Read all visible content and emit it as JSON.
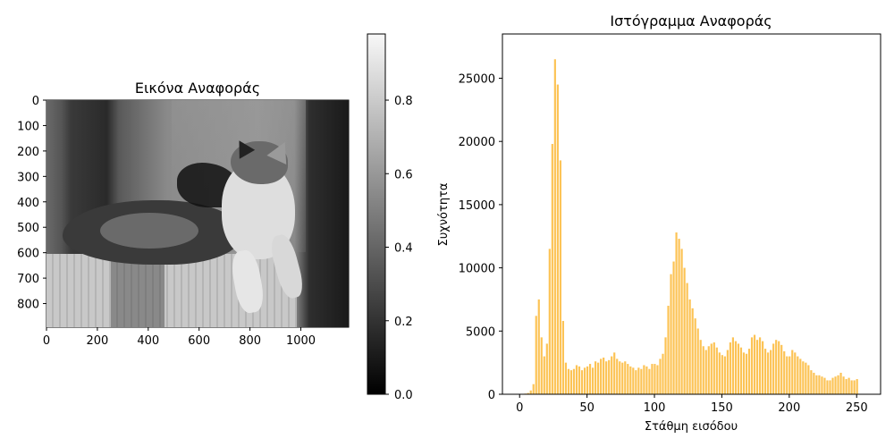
{
  "image_panel": {
    "title": "Εικόνα Αναφοράς",
    "x_ticks": [
      0,
      200,
      400,
      600,
      800,
      1000
    ],
    "y_ticks": [
      0,
      100,
      200,
      300,
      400,
      500,
      600,
      700,
      800
    ],
    "x_range": [
      0,
      1188
    ],
    "y_range": [
      0,
      893
    ],
    "colormap": "gray",
    "image_content": "grayscale photograph of a tabby-and-white cat lying on a sofa"
  },
  "colorbar": {
    "ticks": [
      0.0,
      0.2,
      0.4,
      0.6,
      0.8
    ],
    "tick_labels": [
      "0.0",
      "0.2",
      "0.4",
      "0.6",
      "0.8"
    ],
    "range": [
      0.0,
      0.98
    ],
    "gradient": [
      "#000000",
      "#ffffff"
    ]
  },
  "chart_data": {
    "type": "bar",
    "title": "Ιστόγραμμα Αναφοράς",
    "xlabel": "Στάθμη εισόδου",
    "ylabel": "Συχνότητα",
    "color": "#fbb937",
    "xlim": [
      -12.75,
      267.75
    ],
    "ylim": [
      0,
      28500
    ],
    "x_ticks": [
      0,
      50,
      100,
      150,
      200,
      250
    ],
    "y_ticks": [
      0,
      5000,
      10000,
      15000,
      20000,
      25000
    ],
    "grid": false,
    "legend": "none",
    "bin_width": 2,
    "levels": [
      0,
      2,
      4,
      6,
      8,
      10,
      12,
      14,
      16,
      18,
      20,
      22,
      24,
      26,
      28,
      30,
      32,
      34,
      36,
      38,
      40,
      42,
      44,
      46,
      48,
      50,
      52,
      54,
      56,
      58,
      60,
      62,
      64,
      66,
      68,
      70,
      72,
      74,
      76,
      78,
      80,
      82,
      84,
      86,
      88,
      90,
      92,
      94,
      96,
      98,
      100,
      102,
      104,
      106,
      108,
      110,
      112,
      114,
      116,
      118,
      120,
      122,
      124,
      126,
      128,
      130,
      132,
      134,
      136,
      138,
      140,
      142,
      144,
      146,
      148,
      150,
      152,
      154,
      156,
      158,
      160,
      162,
      164,
      166,
      168,
      170,
      172,
      174,
      176,
      178,
      180,
      182,
      184,
      186,
      188,
      190,
      192,
      194,
      196,
      198,
      200,
      202,
      204,
      206,
      208,
      210,
      212,
      214,
      216,
      218,
      220,
      222,
      224,
      226,
      228,
      230,
      232,
      234,
      236,
      238,
      240,
      242,
      244,
      246,
      248,
      250
    ],
    "values": [
      0,
      0,
      50,
      100,
      300,
      800,
      6200,
      7500,
      4500,
      3000,
      4000,
      11500,
      19800,
      26500,
      24500,
      18500,
      5800,
      2500,
      2000,
      1900,
      2000,
      2300,
      2200,
      1900,
      2100,
      2200,
      2400,
      2100,
      2600,
      2500,
      2800,
      2900,
      2600,
      2700,
      3000,
      3300,
      2800,
      2600,
      2500,
      2600,
      2400,
      2200,
      2100,
      1900,
      2100,
      2000,
      2300,
      2200,
      2000,
      2400,
      2400,
      2300,
      2800,
      3200,
      4500,
      7000,
      9500,
      10500,
      12800,
      12300,
      11500,
      10000,
      8800,
      7500,
      6800,
      6000,
      5200,
      4300,
      3800,
      3500,
      3800,
      4000,
      4100,
      3700,
      3300,
      3100,
      3000,
      3500,
      4100,
      4500,
      4200,
      4000,
      3700,
      3300,
      3200,
      3600,
      4500,
      4700,
      4300,
      4500,
      4200,
      3600,
      3300,
      3500,
      4000,
      4300,
      4200,
      3900,
      3400,
      3000,
      3000,
      3500,
      3300,
      3000,
      2800,
      2600,
      2500,
      2300,
      1900,
      1700,
      1500,
      1500,
      1400,
      1300,
      1100,
      1100,
      1300,
      1400,
      1500,
      1700,
      1400,
      1200,
      1300,
      1100,
      1100,
      1200
    ],
    "tick_labels": [
      "0",
      "50",
      "100",
      "150",
      "200",
      "250"
    ],
    "ytick_labels": [
      "0",
      "5000",
      "10000",
      "15000",
      "20000",
      "25000"
    ]
  }
}
